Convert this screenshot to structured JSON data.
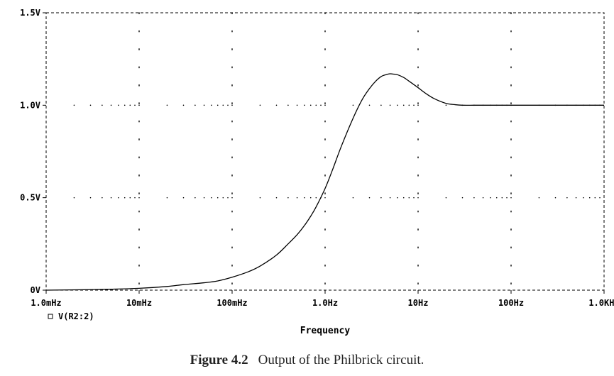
{
  "chart_data": {
    "type": "line",
    "xscale": "log",
    "xlim": [
      0.001,
      1000
    ],
    "ylim": [
      0,
      1.5
    ],
    "xlabel": "Frequency",
    "ylabel": "",
    "x_ticks": [
      {
        "value": 0.001,
        "label": "1.0mHz"
      },
      {
        "value": 0.01,
        "label": "10mHz"
      },
      {
        "value": 0.1,
        "label": "100mHz"
      },
      {
        "value": 1,
        "label": "1.0Hz"
      },
      {
        "value": 10,
        "label": "10Hz"
      },
      {
        "value": 100,
        "label": "100Hz"
      },
      {
        "value": 1000,
        "label": "1.0KHz"
      }
    ],
    "y_ticks": [
      {
        "value": 0,
        "label": "0V"
      },
      {
        "value": 0.5,
        "label": "0.5V"
      },
      {
        "value": 1.0,
        "label": "1.0V"
      },
      {
        "value": 1.5,
        "label": "1.5V"
      }
    ],
    "grid": true,
    "legend_position": "bottom-left",
    "series": [
      {
        "name": "V(R2:2)",
        "color": "#000000",
        "x": [
          0.001,
          0.003,
          0.005,
          0.01,
          0.02,
          0.03,
          0.05,
          0.07,
          0.1,
          0.15,
          0.2,
          0.3,
          0.4,
          0.5,
          0.6,
          0.7,
          0.8,
          1.0,
          1.2,
          1.5,
          2,
          2.5,
          3,
          3.5,
          4,
          4.5,
          5,
          5.5,
          6,
          7,
          8,
          10,
          12,
          15,
          20,
          25,
          30,
          40,
          50,
          70,
          100,
          200,
          300,
          500,
          1000
        ],
        "y": [
          0.0,
          0.003,
          0.005,
          0.01,
          0.02,
          0.03,
          0.04,
          0.05,
          0.07,
          0.1,
          0.13,
          0.19,
          0.25,
          0.3,
          0.35,
          0.4,
          0.45,
          0.55,
          0.65,
          0.78,
          0.93,
          1.03,
          1.09,
          1.13,
          1.155,
          1.165,
          1.17,
          1.168,
          1.165,
          1.15,
          1.13,
          1.095,
          1.065,
          1.035,
          1.01,
          1.003,
          1.0,
          1.0,
          1.0,
          1.0,
          1.0,
          1.0,
          1.0,
          1.0,
          1.0
        ]
      }
    ]
  },
  "caption": {
    "figure_number": "Figure 4.2",
    "text": "Output of the Philbrick circuit."
  }
}
